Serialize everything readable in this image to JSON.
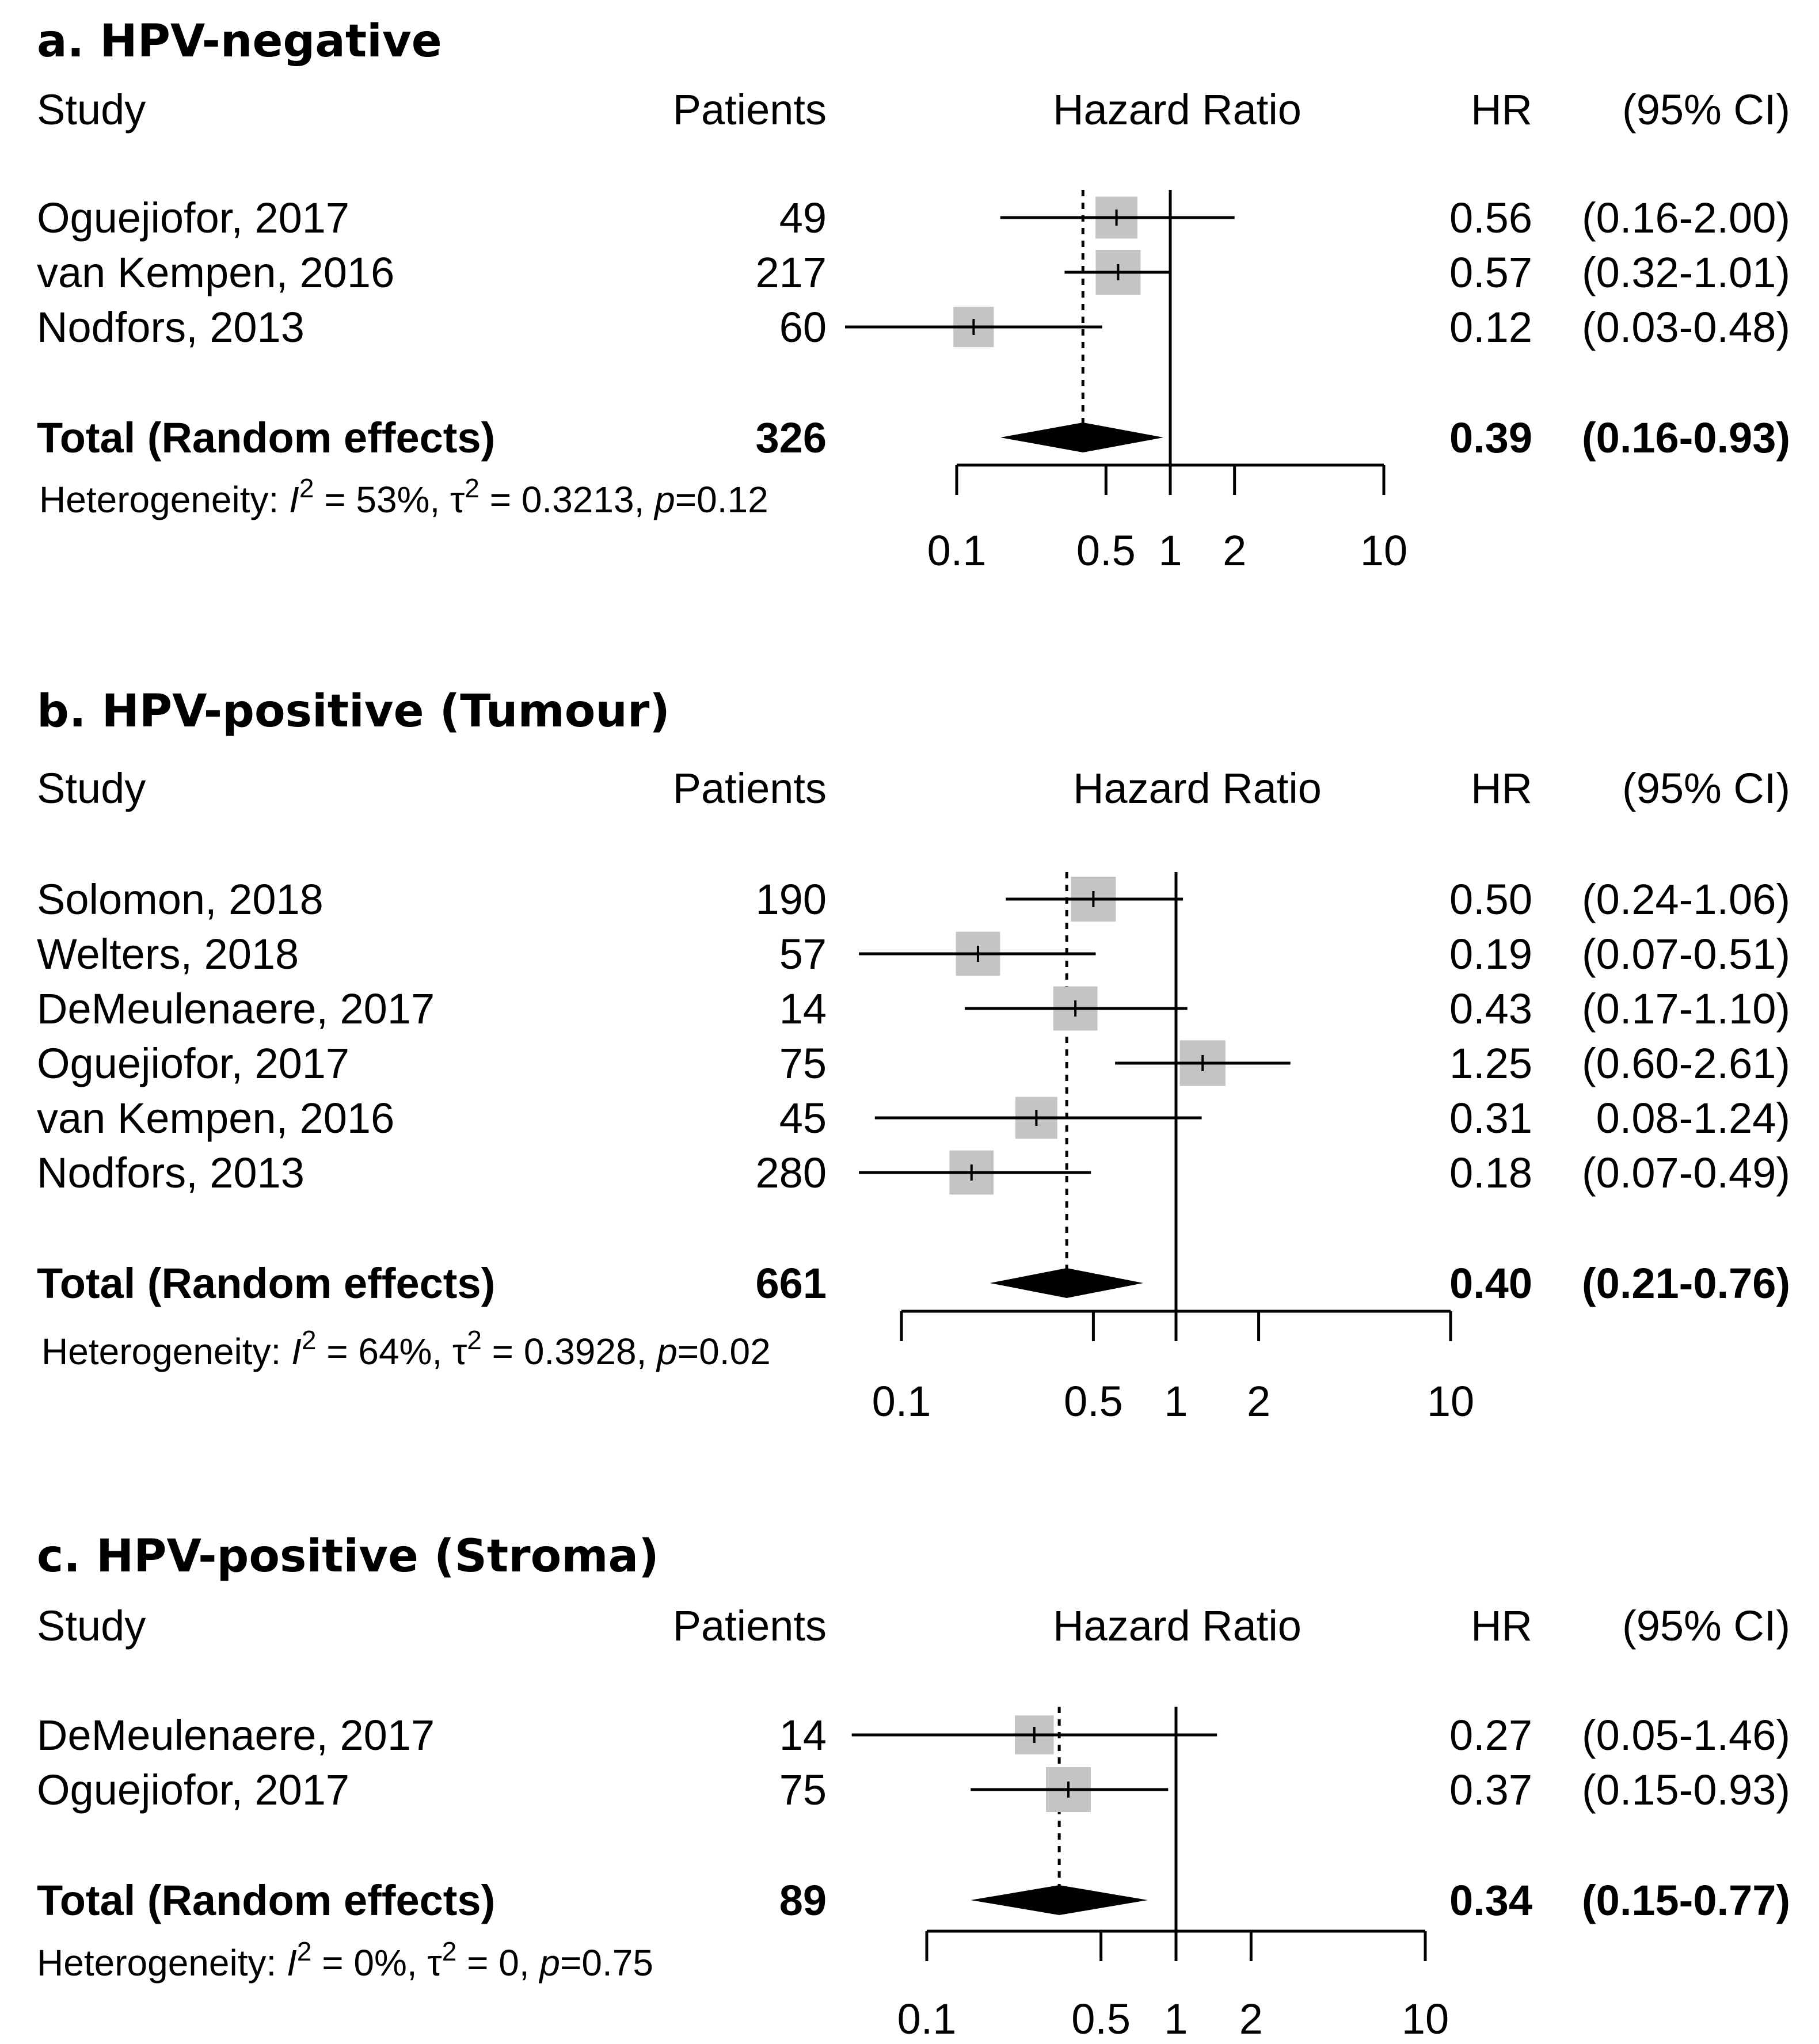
{
  "chart_data": [
    {
      "type": "forest",
      "title": "a. HPV-negative",
      "headers": {
        "study": "Study",
        "patients": "Patients",
        "effect": "Hazard Ratio",
        "hr": "HR",
        "ci": "(95% CI)"
      },
      "studies": [
        {
          "name": "Oguejiofor, 2017",
          "patients": "49",
          "hr": 0.56,
          "lo": 0.16,
          "hi": 2.0,
          "hr_text": "0.56",
          "ci_text": "(0.16-2.00)",
          "weight": 0.8
        },
        {
          "name": "van Kempen, 2016",
          "patients": "217",
          "hr": 0.57,
          "lo": 0.32,
          "hi": 1.01,
          "hr_text": "0.57",
          "ci_text": "(0.32-1.01)",
          "weight": 1.0
        },
        {
          "name": "Nodfors, 2013",
          "patients": "60",
          "hr": 0.12,
          "lo": 0.03,
          "hi": 0.48,
          "hr_text": "0.12",
          "ci_text": "(0.03-0.48)",
          "weight": 0.7
        }
      ],
      "total": {
        "label": "Total (Random effects)",
        "patients": "326",
        "hr": 0.39,
        "lo": 0.16,
        "hi": 0.93,
        "hr_text": "0.39",
        "ci_text": "(0.16-0.93)"
      },
      "heterogeneity": {
        "prefix": "Heterogeneity: ",
        "i2_symbol": "I",
        "i2_value": " = 53%, ",
        "tau_symbol": "τ",
        "tau_value": " = 0.3213, ",
        "p_symbol": "p",
        "p_value": "=0.12",
        "sup": "2"
      },
      "axis": {
        "scale": "log",
        "ticks": [
          0.1,
          0.5,
          1,
          2,
          10
        ],
        "tick_labels": [
          "0.1",
          "0.5",
          "1",
          "2",
          "10"
        ],
        "range": [
          0.1,
          10
        ]
      }
    },
    {
      "type": "forest",
      "title": "b. HPV-positive (Tumour)",
      "headers": {
        "study": "Study",
        "patients": "Patients",
        "effect": "Hazard Ratio",
        "hr": "HR",
        "ci": "(95% CI)"
      },
      "studies": [
        {
          "name": "Solomon, 2018",
          "patients": "190",
          "hr": 0.5,
          "lo": 0.24,
          "hi": 1.06,
          "hr_text": "0.50",
          "ci_text": "(0.24-1.06)",
          "weight": 1.0
        },
        {
          "name": "Welters, 2018",
          "patients": "57",
          "hr": 0.19,
          "lo": 0.07,
          "hi": 0.51,
          "hr_text": "0.19",
          "ci_text": "(0.07-0.51)",
          "weight": 0.95
        },
        {
          "name": "DeMeulenaere, 2017",
          "patients": "14",
          "hr": 0.43,
          "lo": 0.17,
          "hi": 1.1,
          "hr_text": "0.43",
          "ci_text": "(0.17-1.10)",
          "weight": 0.95
        },
        {
          "name": "Oguejiofor, 2017",
          "patients": "75",
          "hr": 1.25,
          "lo": 0.6,
          "hi": 2.61,
          "hr_text": "1.25",
          "ci_text": "(0.60-2.61)",
          "weight": 1.05
        },
        {
          "name": "van Kempen, 2016",
          "patients": "45",
          "hr": 0.31,
          "lo": 0.08,
          "hi": 1.24,
          "hr_text": "0.31",
          "ci_text": " 0.08-1.24)",
          "weight": 0.8
        },
        {
          "name": "Nodfors, 2013",
          "patients": "280",
          "hr": 0.18,
          "lo": 0.07,
          "hi": 0.49,
          "hr_text": "0.18",
          "ci_text": "(0.07-0.49)",
          "weight": 0.95
        }
      ],
      "total": {
        "label": "Total (Random effects)",
        "patients": "661",
        "hr": 0.4,
        "lo": 0.21,
        "hi": 0.76,
        "hr_text": "0.40",
        "ci_text": "(0.21-0.76)"
      },
      "heterogeneity": {
        "prefix": "Heterogeneity: ",
        "i2_symbol": "I",
        "i2_value": " = 64%, ",
        "tau_symbol": "τ",
        "tau_value": " = 0.3928, ",
        "p_symbol": "p",
        "p_value": "=0.02",
        "sup": "2"
      },
      "axis": {
        "scale": "log",
        "ticks": [
          0.1,
          0.5,
          1,
          2,
          10
        ],
        "tick_labels": [
          "0.1",
          "0.5",
          "1",
          "2",
          "10"
        ],
        "range": [
          0.1,
          10
        ]
      }
    },
    {
      "type": "forest",
      "title": "c. HPV-positive (Stroma)",
      "headers": {
        "study": "Study",
        "patients": "Patients",
        "effect": "Hazard Ratio",
        "hr": "HR",
        "ci": "(95% CI)"
      },
      "studies": [
        {
          "name": "DeMeulenaere, 2017",
          "patients": "14",
          "hr": 0.27,
          "lo": 0.05,
          "hi": 1.46,
          "hr_text": "0.27",
          "ci_text": "(0.05-1.46)",
          "weight": 0.6
        },
        {
          "name": "Oguejiofor, 2017",
          "patients": "75",
          "hr": 0.37,
          "lo": 0.15,
          "hi": 0.93,
          "hr_text": "0.37",
          "ci_text": "(0.15-0.93)",
          "weight": 1.0
        }
      ],
      "total": {
        "label": "Total (Random effects)",
        "patients": "89",
        "hr": 0.34,
        "lo": 0.15,
        "hi": 0.77,
        "hr_text": "0.34",
        "ci_text": "(0.15-0.77)"
      },
      "heterogeneity": {
        "prefix": "Heterogeneity: ",
        "i2_symbol": "I",
        "i2_value": " = 0%, ",
        "tau_symbol": "τ",
        "tau_value": " = 0, ",
        "p_symbol": "p",
        "p_value": "=0.75",
        "sup": "2"
      },
      "axis": {
        "scale": "log",
        "ticks": [
          0.1,
          0.5,
          1,
          2,
          10
        ],
        "tick_labels": [
          "0.1",
          "0.5",
          "1",
          "2",
          "10"
        ],
        "range": [
          0.1,
          10
        ]
      }
    }
  ]
}
